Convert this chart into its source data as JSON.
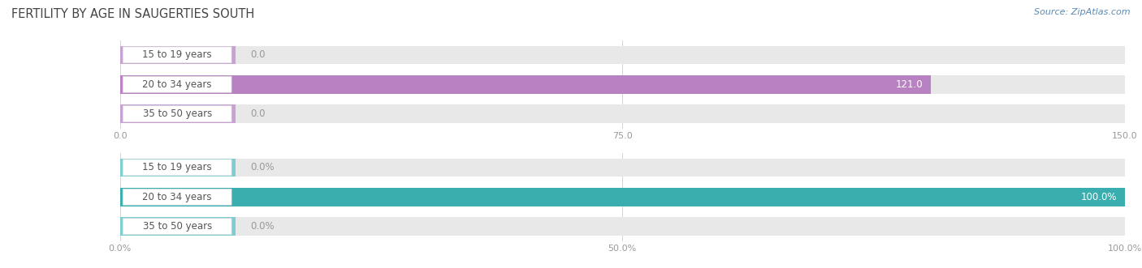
{
  "title": "FERTILITY BY AGE IN SAUGERTIES SOUTH",
  "source": "Source: ZipAtlas.com",
  "top_chart": {
    "categories": [
      "15 to 19 years",
      "20 to 34 years",
      "35 to 50 years"
    ],
    "values": [
      0.0,
      121.0,
      0.0
    ],
    "xlim": [
      0,
      150.0
    ],
    "xticks": [
      0.0,
      75.0,
      150.0
    ],
    "bar_color": "#b882c2",
    "bg_color": "#e8e8e8",
    "label_inside_color": "#ffffff",
    "label_outside_color": "#999999",
    "pill_bar_color": "#c9a0d4"
  },
  "bottom_chart": {
    "categories": [
      "15 to 19 years",
      "20 to 34 years",
      "35 to 50 years"
    ],
    "values": [
      0.0,
      100.0,
      0.0
    ],
    "xlim": [
      0,
      100.0
    ],
    "xticks": [
      0.0,
      50.0,
      100.0
    ],
    "bar_color": "#3aaeae",
    "bg_color": "#e8e8e8",
    "label_inside_color": "#ffffff",
    "label_outside_color": "#999999",
    "pill_bar_color": "#7dcece"
  },
  "label_font_color": "#555555",
  "tick_font_color": "#999999",
  "bar_height": 0.62,
  "title_fontsize": 10.5,
  "label_fontsize": 8.5,
  "tick_fontsize": 8,
  "source_fontsize": 8,
  "source_color": "#5b8ab5",
  "row_bg_color": "#f0f0f0",
  "fig_bg_color": "#ffffff"
}
